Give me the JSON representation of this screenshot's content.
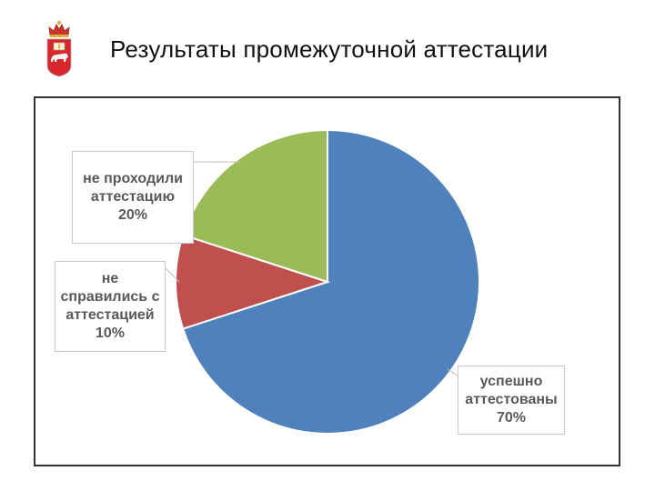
{
  "slide": {
    "title": "Результаты промежуточной аттестации"
  },
  "colors": {
    "series": [
      "#4f81bd",
      "#c0504d",
      "#9bbb59"
    ],
    "label_text": "#595959",
    "emblem_red": "#d7262c"
  },
  "icons": {
    "emblem": "perm-krai-coat-of-arms-icon"
  },
  "chart_data": {
    "type": "pie",
    "title": "",
    "categories": [
      "успешно аттестованы",
      "не справились с аттестацией",
      "не проходили аттестацию"
    ],
    "values": [
      70,
      10,
      20
    ],
    "data_labels": [
      {
        "lines": [
          "успешно",
          "аттестованы",
          "70%"
        ]
      },
      {
        "lines": [
          "не",
          "справились с",
          "аттестацией",
          "10%"
        ]
      },
      {
        "lines": [
          "не проходили",
          "аттестацию",
          "20%"
        ]
      }
    ],
    "start_angle_deg": 0,
    "direction": "clockwise",
    "legend": "none"
  }
}
